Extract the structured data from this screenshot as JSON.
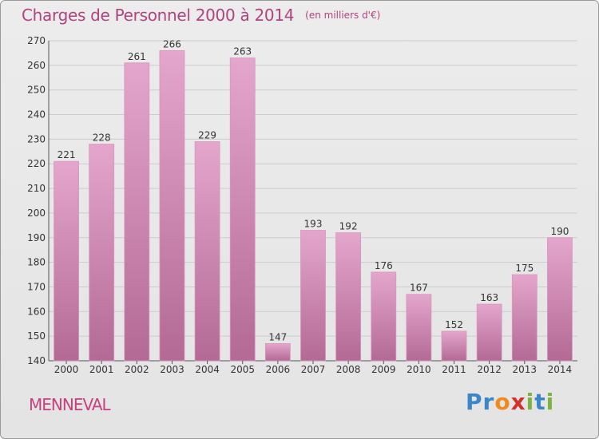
{
  "title": "Charges de Personnel 2000 à 2014",
  "subtitle": "(en milliers d'€)",
  "commune": "MENNEVAL",
  "logo": {
    "text": "Proxiti",
    "letters": [
      {
        "char": "P",
        "color": "#3a86c8"
      },
      {
        "char": "r",
        "color": "#3a86c8"
      },
      {
        "char": "o",
        "color": "#f08a1c"
      },
      {
        "char": "x",
        "color": "#d4302b"
      },
      {
        "char": "i",
        "color": "#7cb342"
      },
      {
        "char": "t",
        "color": "#3a86c8"
      },
      {
        "char": "i",
        "color": "#7cb342"
      }
    ]
  },
  "colors": {
    "bar_light": "#e4a6cc",
    "bar_dark": "#b36a94",
    "text": "#333333",
    "title": "#b0447f",
    "grid": "#cccccc"
  },
  "chart_data": {
    "type": "bar",
    "categories": [
      "2000",
      "2001",
      "2002",
      "2003",
      "2004",
      "2005",
      "2006",
      "2007",
      "2008",
      "2009",
      "2010",
      "2011",
      "2012",
      "2013",
      "2014"
    ],
    "values": [
      221,
      228,
      261,
      266,
      229,
      263,
      147,
      193,
      192,
      176,
      167,
      152,
      163,
      175,
      190
    ],
    "ylim": [
      140,
      270
    ],
    "yticks": [
      140,
      150,
      160,
      170,
      180,
      190,
      200,
      210,
      220,
      230,
      240,
      250,
      260,
      270
    ],
    "grid": true,
    "title": "Charges de Personnel 2000 à 2014",
    "subtitle": "(en milliers d'€)",
    "xlabel": "",
    "ylabel": ""
  }
}
